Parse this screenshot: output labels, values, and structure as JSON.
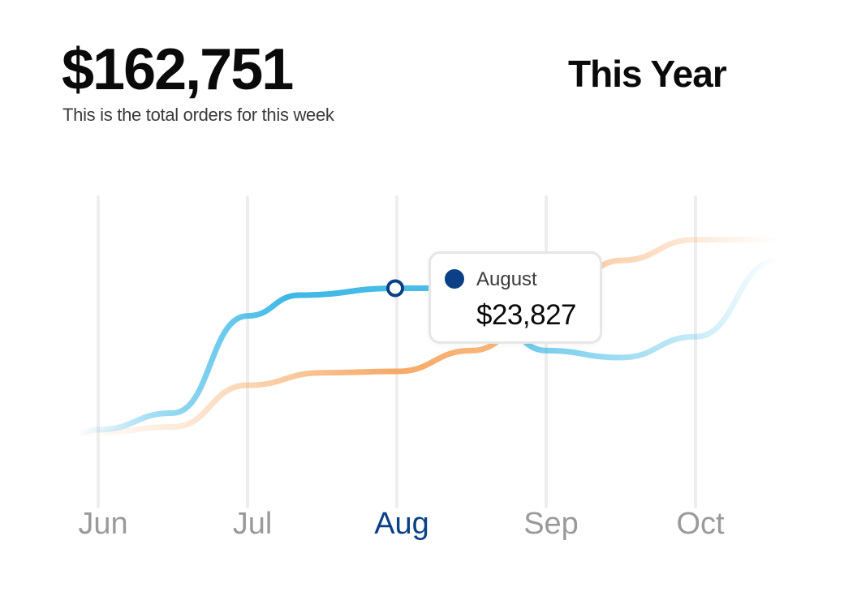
{
  "header": {
    "total": "$162,751",
    "subtitle": "This is the total orders for this week",
    "period": "This Year"
  },
  "tooltip": {
    "month": "August",
    "value": "$23,827"
  },
  "colors": {
    "blue_series": "#3db8e6",
    "orange_series": "#f6a55e",
    "active_month": "#0b3f86",
    "inactive_month": "#9a9a9a",
    "gridline": "#eeeeee"
  },
  "chart_data": {
    "type": "line",
    "categories": [
      "Jun",
      "Jul",
      "Aug",
      "Sep",
      "Oct"
    ],
    "active_category": "Aug",
    "series": [
      {
        "color": "blue",
        "x": [
          -0.15,
          0.0,
          0.5,
          1.0,
          1.35,
          2.0,
          2.5,
          3.0,
          3.5,
          4.0,
          4.55
        ],
        "y": [
          0.0,
          0.03,
          0.15,
          0.85,
          1.0,
          1.05,
          1.05,
          0.6,
          0.55,
          0.7,
          1.25
        ]
      },
      {
        "color": "orange",
        "x": [
          -0.15,
          0.0,
          0.5,
          1.0,
          1.5,
          2.0,
          2.5,
          3.0,
          3.5,
          4.0,
          4.55
        ],
        "y": [
          0.0,
          0.01,
          0.05,
          0.35,
          0.44,
          0.45,
          0.6,
          0.9,
          1.25,
          1.4,
          1.4
        ]
      }
    ],
    "highlight": {
      "x": 2.0,
      "y": 1.05
    }
  }
}
